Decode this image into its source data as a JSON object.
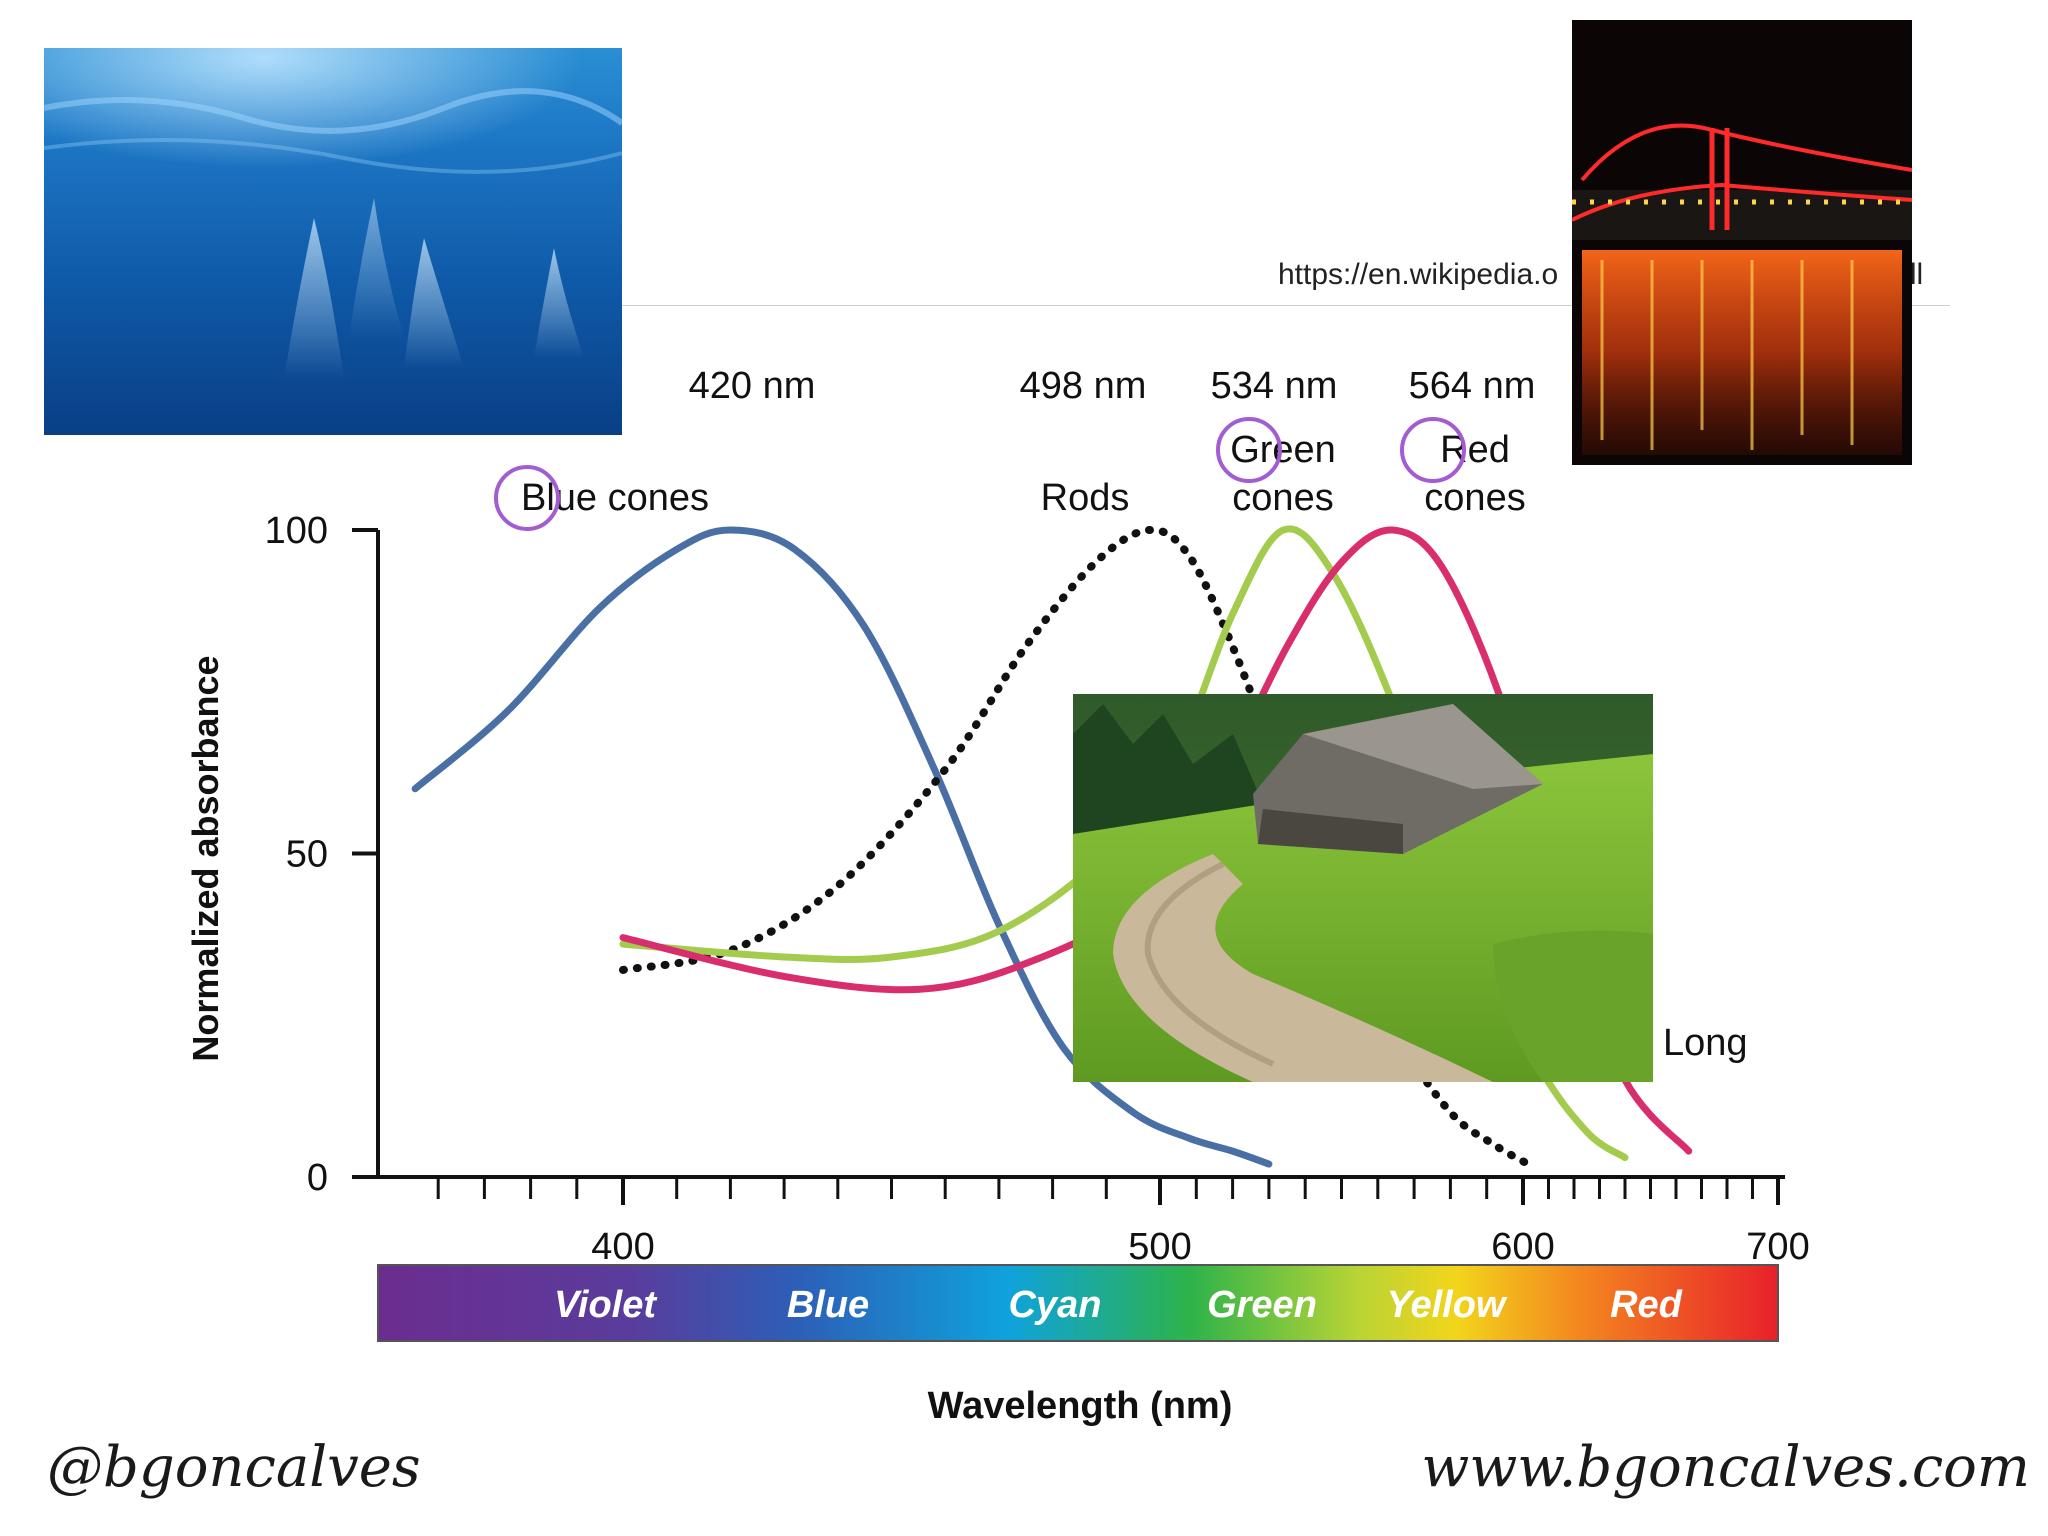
{
  "chart_data": {
    "type": "line",
    "title": "",
    "xlabel": "Wavelength (nm)",
    "ylabel": "Normalized absorbance",
    "xlim": [
      350,
      700
    ],
    "ylim": [
      0,
      100
    ],
    "x_ticks": [
      400,
      500,
      600,
      700
    ],
    "y_ticks": [
      0,
      50,
      100
    ],
    "grid": false,
    "series": [
      {
        "name": "Blue cones",
        "peak_label": "420 nm",
        "color": "#4a6fa5",
        "style": "solid",
        "x": [
          355,
          375,
          395,
          410,
          420,
          432,
          445,
          458,
          470,
          482,
          495,
          508,
          520,
          530
        ],
        "y": [
          60,
          72,
          88,
          97,
          100,
          97,
          85,
          63,
          39,
          20,
          10,
          6,
          4,
          2
        ]
      },
      {
        "name": "Rods",
        "peak_label": "498 nm",
        "color": "#111111",
        "style": "dotted",
        "x": [
          400,
          420,
          440,
          460,
          475,
          488,
          498,
          508,
          520,
          535,
          550,
          565,
          580,
          592,
          602
        ],
        "y": [
          32,
          35,
          45,
          63,
          82,
          95,
          100,
          96,
          82,
          60,
          38,
          22,
          10,
          5,
          2
        ]
      },
      {
        "name": "Green cones",
        "peak_label": "534 nm",
        "color": "#a3cc4e",
        "style": "solid",
        "x": [
          400,
          430,
          450,
          470,
          490,
          505,
          520,
          534,
          548,
          565,
          585,
          605,
          625,
          640
        ],
        "y": [
          36,
          34,
          34,
          38,
          50,
          66,
          87,
          100,
          93,
          72,
          40,
          18,
          7,
          3
        ]
      },
      {
        "name": "Red cones",
        "peak_label": "564 nm",
        "color": "#d92e6e",
        "style": "solid",
        "x": [
          400,
          430,
          455,
          475,
          495,
          515,
          535,
          550,
          564,
          578,
          595,
          615,
          640,
          665
        ],
        "y": [
          37,
          31,
          29,
          33,
          42,
          60,
          82,
          95,
          100,
          94,
          72,
          40,
          15,
          4
        ]
      }
    ],
    "annotations": [
      "Long"
    ],
    "spectrum": [
      "Violet",
      "Blue",
      "Cyan",
      "Green",
      "Yellow",
      "Red"
    ]
  },
  "page": {
    "source_url": "https://en.wikipedia.o",
    "source_url_tail": "ell",
    "footer_left": "@bgoncalves",
    "footer_right": "www.bgoncalves.com"
  }
}
